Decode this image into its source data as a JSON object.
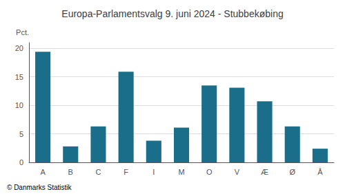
{
  "chart_data": {
    "type": "bar",
    "title": "Europa-Parlamentsvalg 9. juni 2024 - Stubbekøbing",
    "ylabel": "Pct.",
    "footer": "© Danmarks Statistik",
    "categories": [
      "A",
      "B",
      "C",
      "F",
      "I",
      "M",
      "O",
      "V",
      "Æ",
      "Ø",
      "Å"
    ],
    "values": [
      19.4,
      2.8,
      6.3,
      15.9,
      3.8,
      6.1,
      13.5,
      13.1,
      10.7,
      6.3,
      2.4
    ],
    "color": "#1a6e8a",
    "ylim": [
      0,
      21
    ],
    "yticks": [
      0,
      5,
      10,
      15,
      20
    ],
    "grid": true
  }
}
